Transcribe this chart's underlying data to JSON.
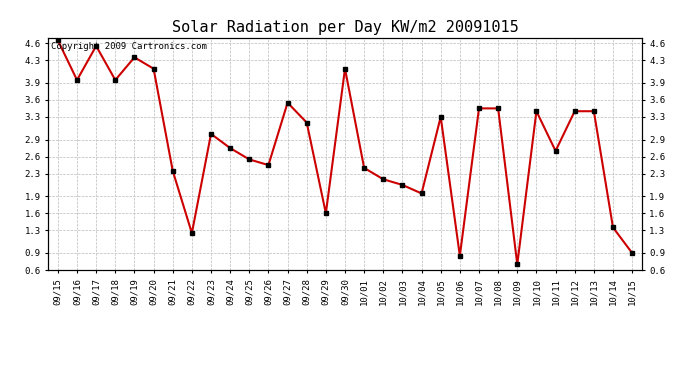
{
  "title": "Solar Radiation per Day KW/m2 20091015",
  "copyright": "Copyright 2009 Cartronics.com",
  "labels": [
    "09/15",
    "09/16",
    "09/17",
    "09/18",
    "09/19",
    "09/20",
    "09/21",
    "09/22",
    "09/23",
    "09/24",
    "09/25",
    "09/26",
    "09/27",
    "09/28",
    "09/29",
    "09/30",
    "10/01",
    "10/02",
    "10/03",
    "10/04",
    "10/05",
    "10/06",
    "10/07",
    "10/08",
    "10/09",
    "10/10",
    "10/11",
    "10/12",
    "10/13",
    "10/14",
    "10/15"
  ],
  "values": [
    4.65,
    3.95,
    4.55,
    3.95,
    4.35,
    4.15,
    2.35,
    1.25,
    3.0,
    2.75,
    2.55,
    2.45,
    3.55,
    3.2,
    1.6,
    4.15,
    2.4,
    2.2,
    2.1,
    1.95,
    3.3,
    0.85,
    3.45,
    3.45,
    0.7,
    3.4,
    2.7,
    3.4,
    3.4,
    1.35,
    0.9
  ],
  "line_color": "#cc0000",
  "marker": "s",
  "marker_size": 2.5,
  "marker_color": "#000000",
  "ylim": [
    0.6,
    4.7
  ],
  "yticks": [
    0.6,
    0.9,
    1.3,
    1.6,
    1.9,
    2.3,
    2.6,
    2.9,
    3.3,
    3.6,
    3.9,
    4.3,
    4.6
  ],
  "grid_color": "#bbbbbb",
  "bg_color": "#ffffff",
  "title_fontsize": 11,
  "tick_fontsize": 6.5,
  "copyright_fontsize": 6.5,
  "linewidth": 1.5
}
